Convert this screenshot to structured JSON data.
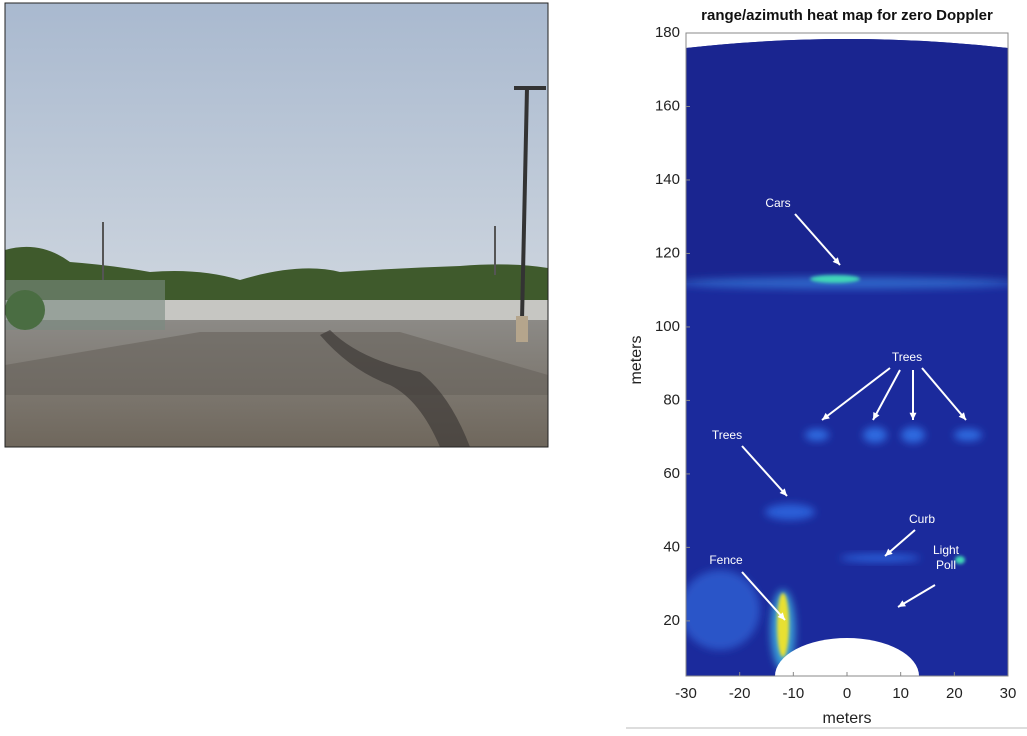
{
  "chart_data": {
    "type": "heatmap",
    "title": "range/azimuth heat map for zero Doppler",
    "x_label": "meters",
    "y_label": "meters",
    "xlim": [
      -30,
      30
    ],
    "ylim": [
      5,
      180
    ],
    "xticks": [
      -30,
      -20,
      -10,
      0,
      10,
      20,
      30
    ],
    "yticks": [
      20,
      40,
      60,
      80,
      100,
      120,
      140,
      160,
      180
    ],
    "annotations": [
      {
        "lines": [
          "Cars"
        ]
      },
      {
        "lines": [
          "Trees"
        ]
      },
      {
        "lines": [
          "Trees"
        ]
      },
      {
        "lines": [
          "Curb"
        ]
      },
      {
        "lines": [
          "Light",
          "Poll"
        ]
      },
      {
        "lines": [
          "Fence"
        ]
      }
    ]
  }
}
